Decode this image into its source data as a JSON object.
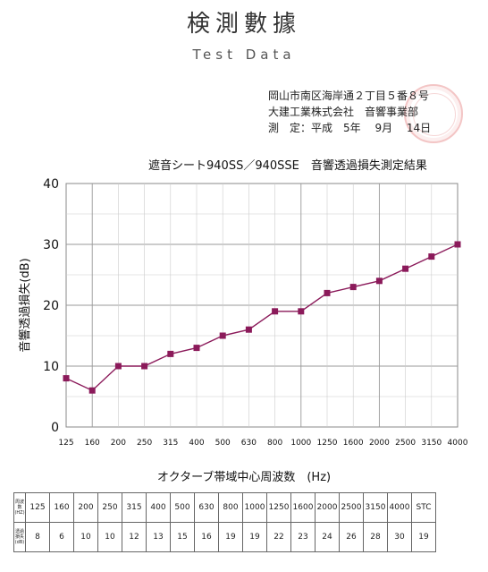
{
  "header": {
    "title": "検測數據",
    "subtitle": "Test Data",
    "address": "岡山市南区海岸通２丁目５番８号",
    "company": "大建工業株式会社　音響事業部",
    "date": "測　定：平成　5年　 9月　 14日"
  },
  "stamp": {
    "color": "#e07070"
  },
  "chart_data": {
    "type": "line",
    "title": "遮音シート940SS／940SSE　音響透過損失測定結果",
    "xlabel": "オクターブ帯域中心周波数　(Hz)",
    "ylabel": "音響透過損失(dB)",
    "categories": [
      "125",
      "160",
      "200",
      "250",
      "315",
      "400",
      "500",
      "630",
      "800",
      "1000",
      "1250",
      "1600",
      "2000",
      "2500",
      "3150",
      "4000"
    ],
    "series": [
      {
        "values": [
          8,
          6,
          10,
          10,
          12,
          13,
          15,
          16,
          19,
          19,
          22,
          23,
          24,
          26,
          28,
          30
        ]
      }
    ],
    "ylim": [
      0,
      40
    ],
    "yticks": [
      "0",
      "10",
      "20",
      "30",
      "40"
    ],
    "grid": true,
    "color": "#8b1a5a"
  },
  "table": {
    "row1_header": "周波数 (HZ)",
    "row2_header": "透過損失 (dB)",
    "frequencies": [
      "125",
      "160",
      "200",
      "250",
      "315",
      "400",
      "500",
      "630",
      "800",
      "1000",
      "1250",
      "1600",
      "2000",
      "2500",
      "3150",
      "4000",
      "STC"
    ],
    "values": [
      "8",
      "6",
      "10",
      "10",
      "12",
      "13",
      "15",
      "16",
      "19",
      "19",
      "22",
      "23",
      "24",
      "26",
      "28",
      "30",
      "19"
    ]
  }
}
